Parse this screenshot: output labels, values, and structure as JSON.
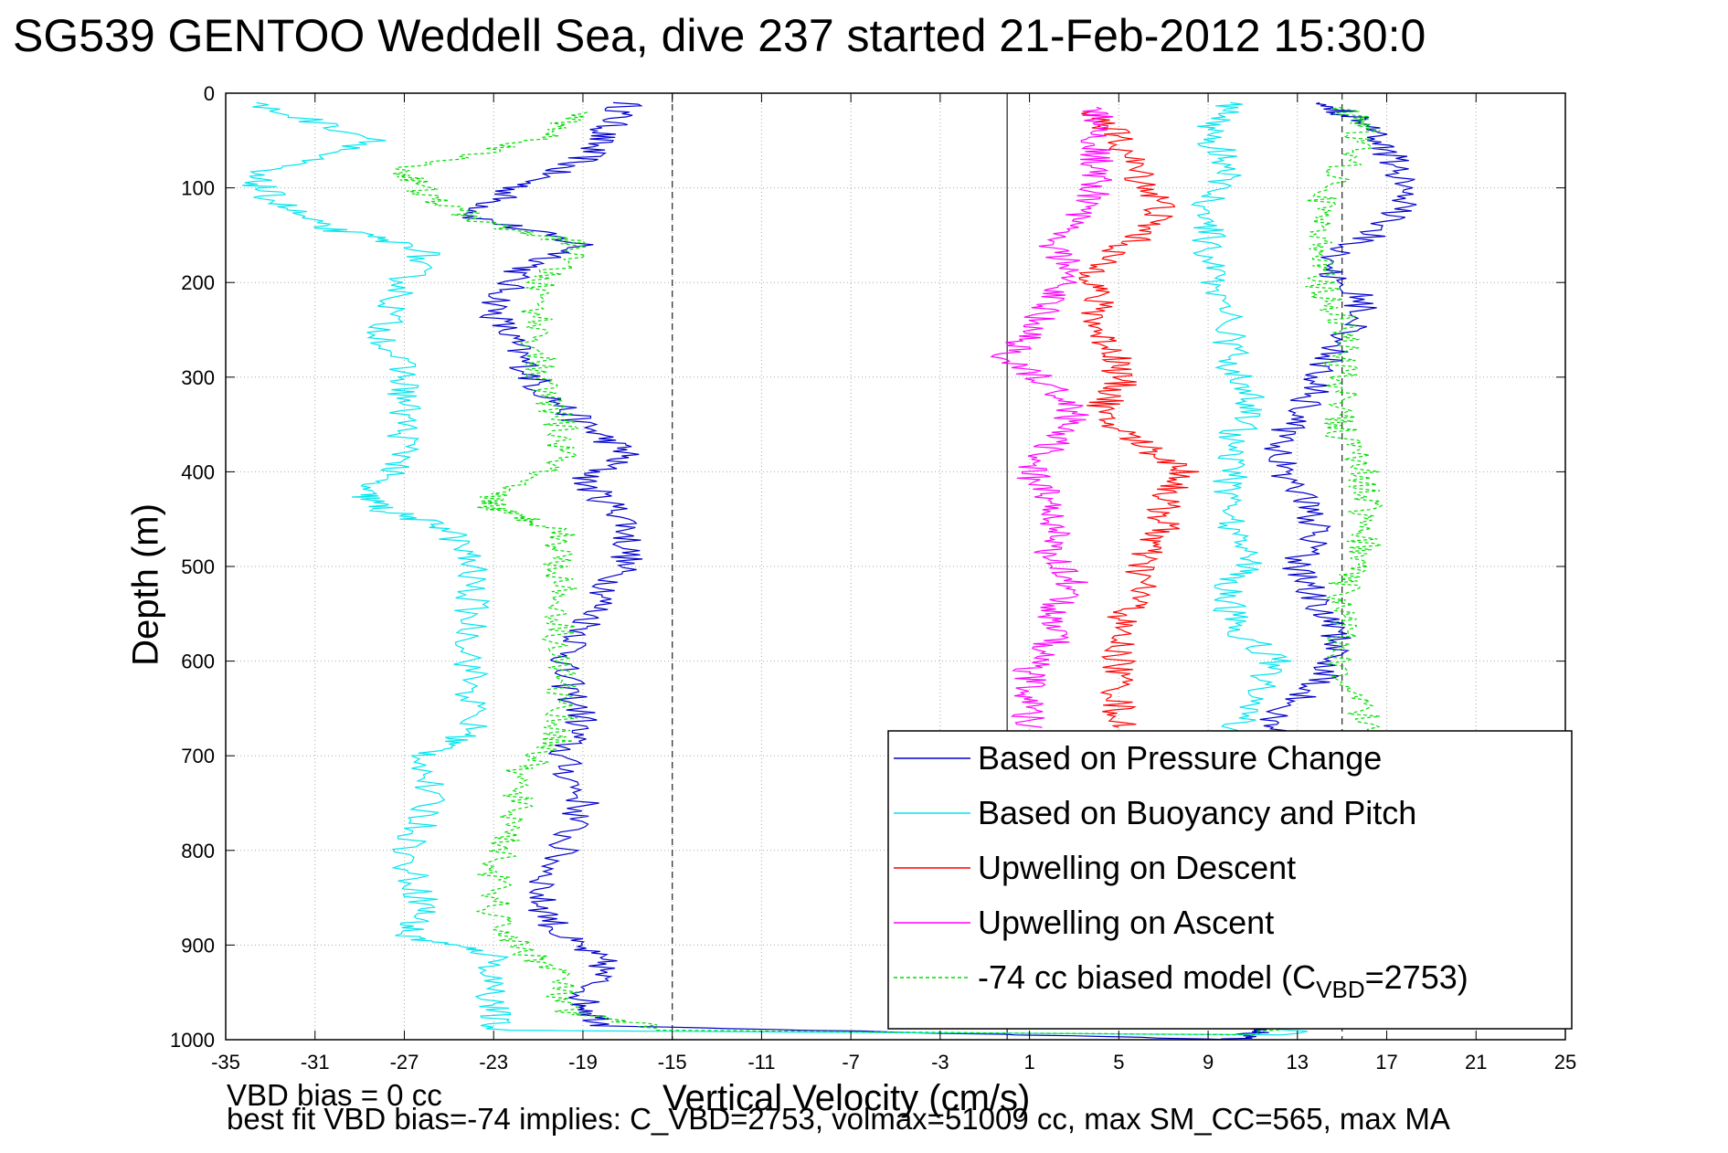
{
  "title": "SG539 GENTOO Weddell Sea, dive 237 started 21-Feb-2012 15:30:0",
  "footer": {
    "line1": "VBD bias = 0 cc",
    "line2": "best fit VBD bias=-74 implies: C_VBD=2753, volmax=51009 cc, max SM_CC=565, max MA"
  },
  "chart_data": {
    "type": "line",
    "xlabel": "Vertical Velocity (cm/s)",
    "ylabel": "Depth (m)",
    "xlim": [
      -35,
      25
    ],
    "ylim": [
      0,
      1000
    ],
    "y_reversed": true,
    "grid": true,
    "xticks": [
      -35,
      -31,
      -27,
      -23,
      -19,
      -15,
      -11,
      -7,
      -3,
      1,
      5,
      9,
      13,
      17,
      21,
      25
    ],
    "yticks": [
      0,
      100,
      200,
      300,
      400,
      500,
      600,
      700,
      800,
      900,
      1000
    ],
    "vertical_reference_lines": [
      {
        "x": -15,
        "style": "dashed"
      },
      {
        "x": 0,
        "style": "solid"
      },
      {
        "x": 15,
        "style": "dashed"
      }
    ],
    "legend_position": "bottom-right",
    "series": [
      {
        "name": "Based on Pressure Change",
        "color": "#0000cc",
        "style": "solid",
        "points": [
          [
            -17,
            10
          ],
          [
            -18,
            40
          ],
          [
            -19,
            70
          ],
          [
            -22,
            100
          ],
          [
            -24,
            130
          ],
          [
            -19,
            160
          ],
          [
            -22,
            190
          ],
          [
            -23,
            230
          ],
          [
            -22,
            270
          ],
          [
            -21,
            310
          ],
          [
            -19,
            350
          ],
          [
            -17,
            380
          ],
          [
            -19,
            410
          ],
          [
            -17,
            450
          ],
          [
            -17,
            490
          ],
          [
            -18,
            530
          ],
          [
            -19,
            570
          ],
          [
            -20,
            610
          ],
          [
            -19,
            660
          ],
          [
            -20,
            700
          ],
          [
            -19,
            750
          ],
          [
            -20,
            800
          ],
          [
            -21,
            850
          ],
          [
            -20,
            890
          ],
          [
            -18,
            920
          ],
          [
            -19,
            960
          ],
          [
            -18,
            985
          ],
          [
            10,
            1000
          ],
          [
            12,
            985
          ],
          [
            13,
            960
          ],
          [
            13,
            920
          ],
          [
            13,
            880
          ],
          [
            13,
            840
          ],
          [
            13,
            800
          ],
          [
            14,
            760
          ],
          [
            13,
            720
          ],
          [
            13,
            690
          ],
          [
            12,
            660
          ],
          [
            14,
            620
          ],
          [
            15,
            580
          ],
          [
            14,
            540
          ],
          [
            13,
            500
          ],
          [
            14,
            460
          ],
          [
            13,
            420
          ],
          [
            12,
            380
          ],
          [
            13,
            340
          ],
          [
            14,
            300
          ],
          [
            15,
            260
          ],
          [
            16,
            220
          ],
          [
            14,
            180
          ],
          [
            17,
            140
          ],
          [
            18,
            100
          ],
          [
            17,
            60
          ],
          [
            16,
            30
          ],
          [
            14,
            10
          ]
        ]
      },
      {
        "name": "Based on Buoyancy and Pitch",
        "color": "#00e5ee",
        "style": "solid",
        "points": [
          [
            -34,
            10
          ],
          [
            -28,
            50
          ],
          [
            -34,
            85
          ],
          [
            -33,
            110
          ],
          [
            -31,
            140
          ],
          [
            -26,
            165
          ],
          [
            -27,
            200
          ],
          [
            -28,
            250
          ],
          [
            -27,
            300
          ],
          [
            -27,
            340
          ],
          [
            -27,
            390
          ],
          [
            -29,
            420
          ],
          [
            -28,
            440
          ],
          [
            -25,
            460
          ],
          [
            -24,
            500
          ],
          [
            -24,
            560
          ],
          [
            -24,
            620
          ],
          [
            -24,
            675
          ],
          [
            -26,
            700
          ],
          [
            -26,
            760
          ],
          [
            -27,
            810
          ],
          [
            -26,
            860
          ],
          [
            -27,
            890
          ],
          [
            -23,
            910
          ],
          [
            -23,
            960
          ],
          [
            -23,
            990
          ],
          [
            13,
            995
          ],
          [
            11,
            960
          ],
          [
            11,
            920
          ],
          [
            11,
            880
          ],
          [
            11,
            840
          ],
          [
            11,
            800
          ],
          [
            11,
            760
          ],
          [
            10,
            720
          ],
          [
            10,
            680
          ],
          [
            11,
            640
          ],
          [
            12,
            600
          ],
          [
            10,
            560
          ],
          [
            10,
            520
          ],
          [
            11,
            490
          ],
          [
            10,
            450
          ],
          [
            10,
            410
          ],
          [
            10,
            370
          ],
          [
            11,
            330
          ],
          [
            10,
            290
          ],
          [
            10,
            250
          ],
          [
            9,
            200
          ],
          [
            9,
            160
          ],
          [
            9,
            120
          ],
          [
            10,
            80
          ],
          [
            9,
            40
          ],
          [
            10,
            10
          ]
        ]
      },
      {
        "name": "Upwelling on Descent",
        "color": "#ff0000",
        "style": "solid",
        "points": [
          [
            4,
            20
          ],
          [
            5,
            50
          ],
          [
            6,
            90
          ],
          [
            7,
            120
          ],
          [
            6,
            150
          ],
          [
            4,
            180
          ],
          [
            4,
            210
          ],
          [
            4,
            250
          ],
          [
            5,
            280
          ],
          [
            5,
            310
          ],
          [
            4,
            340
          ],
          [
            6,
            370
          ],
          [
            8,
            400
          ],
          [
            7,
            430
          ],
          [
            7,
            460
          ],
          [
            6,
            490
          ],
          [
            6,
            530
          ],
          [
            5,
            560
          ],
          [
            5,
            600
          ],
          [
            5,
            640
          ],
          [
            5,
            670
          ]
        ]
      },
      {
        "name": "Upwelling on Ascent",
        "color": "#ff00ff",
        "style": "solid",
        "points": [
          [
            1,
            670
          ],
          [
            1,
            640
          ],
          [
            1,
            610
          ],
          [
            2,
            580
          ],
          [
            2,
            550
          ],
          [
            3,
            520
          ],
          [
            2,
            490
          ],
          [
            2,
            460
          ],
          [
            2,
            430
          ],
          [
            1,
            400
          ],
          [
            2,
            370
          ],
          [
            3,
            340
          ],
          [
            2,
            310
          ],
          [
            0,
            280
          ],
          [
            1,
            250
          ],
          [
            2,
            220
          ],
          [
            3,
            190
          ],
          [
            2,
            160
          ],
          [
            3,
            130
          ],
          [
            4,
            100
          ],
          [
            4,
            70
          ],
          [
            4,
            40
          ],
          [
            4,
            15
          ]
        ]
      },
      {
        "name": "-74 cc biased model (CVBD=2753)",
        "legend_label_parts": {
          "prefix": "-74 cc biased model (C",
          "subscript": "VBD",
          "suffix": "=2753)"
        },
        "color": "#00dd00",
        "style": "dashed",
        "points": [
          [
            -19,
            20
          ],
          [
            -21,
            50
          ],
          [
            -27,
            80
          ],
          [
            -26,
            110
          ],
          [
            -23,
            140
          ],
          [
            -19,
            160
          ],
          [
            -21,
            200
          ],
          [
            -21,
            250
          ],
          [
            -21,
            300
          ],
          [
            -20,
            350
          ],
          [
            -20,
            390
          ],
          [
            -23,
            420
          ],
          [
            -23,
            440
          ],
          [
            -20,
            460
          ],
          [
            -20,
            500
          ],
          [
            -20,
            560
          ],
          [
            -20,
            620
          ],
          [
            -20,
            680
          ],
          [
            -22,
            720
          ],
          [
            -22,
            770
          ],
          [
            -23,
            820
          ],
          [
            -23,
            870
          ],
          [
            -22,
            900
          ],
          [
            -20,
            930
          ],
          [
            -20,
            970
          ],
          [
            -15,
            990
          ],
          [
            11,
            995
          ],
          [
            14,
            970
          ],
          [
            14,
            930
          ],
          [
            15,
            900
          ],
          [
            15,
            860
          ],
          [
            16,
            820
          ],
          [
            16,
            780
          ],
          [
            16,
            740
          ],
          [
            16,
            700
          ],
          [
            16,
            650
          ],
          [
            15,
            600
          ],
          [
            15,
            560
          ],
          [
            15,
            520
          ],
          [
            16,
            480
          ],
          [
            16,
            440
          ],
          [
            16,
            400
          ],
          [
            15,
            360
          ],
          [
            15,
            320
          ],
          [
            15,
            280
          ],
          [
            15,
            240
          ],
          [
            14,
            200
          ],
          [
            14,
            160
          ],
          [
            14,
            120
          ],
          [
            15,
            80
          ],
          [
            16,
            40
          ],
          [
            15,
            15
          ]
        ]
      }
    ]
  }
}
